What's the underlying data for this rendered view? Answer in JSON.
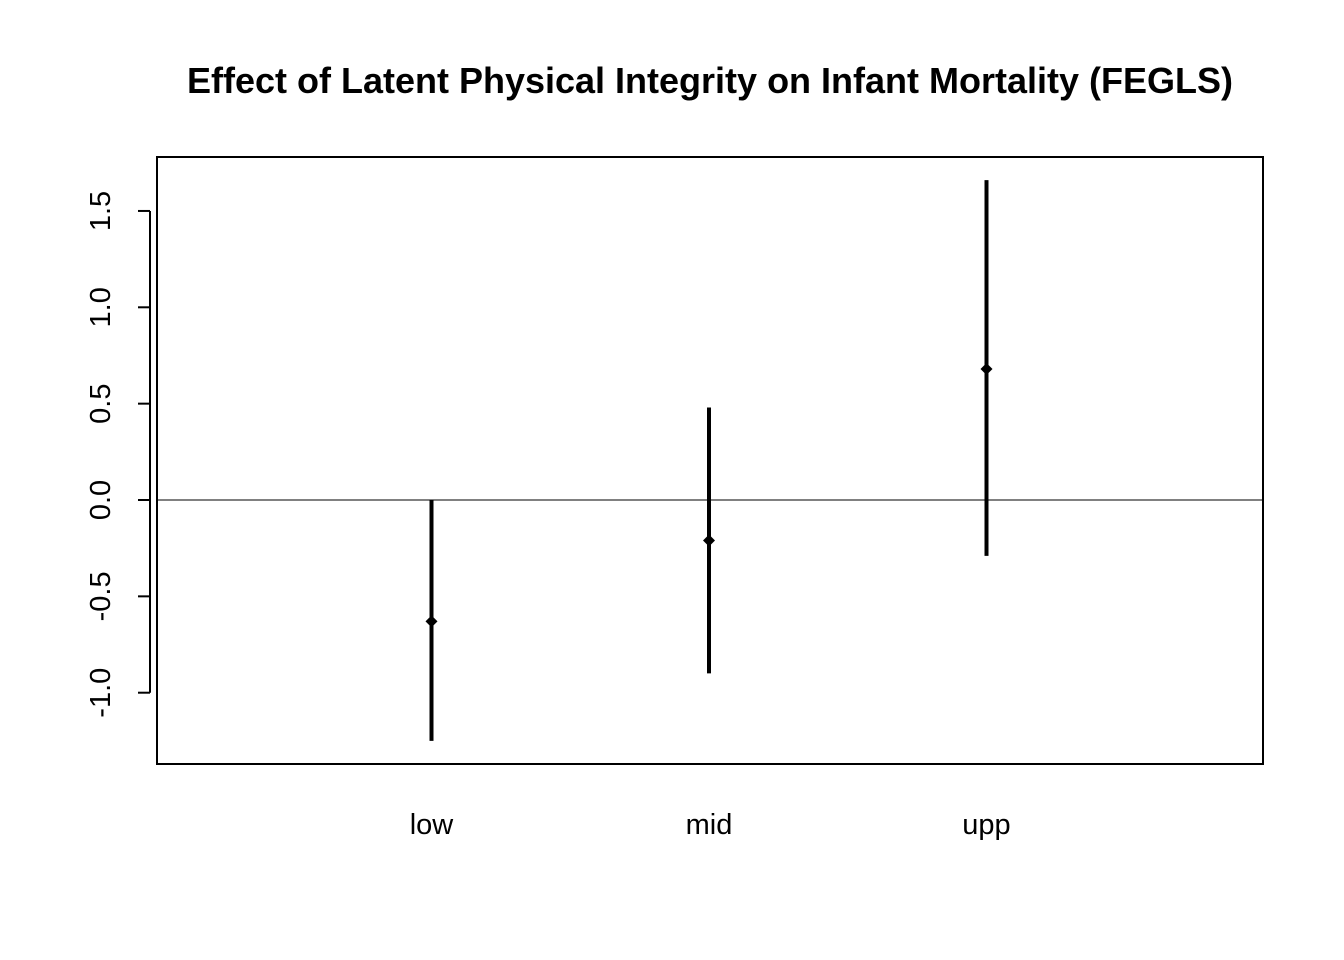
{
  "chart_data": {
    "type": "errorbar",
    "title": "Effect of Latent Physical Integrity on Infant Mortality (FEGLS)",
    "xlabel": "",
    "ylabel": "",
    "categories": [
      "low",
      "mid",
      "upp"
    ],
    "series": [
      {
        "estimate": [
          -0.63,
          -0.21,
          0.68
        ],
        "lower": [
          -1.25,
          -0.9,
          -0.29
        ],
        "upper": [
          0.0,
          0.48,
          1.66
        ]
      }
    ],
    "reference_line": 0.0,
    "ylim": [
      -1.37,
      1.78
    ],
    "yticks": [
      -1.0,
      -0.5,
      0.0,
      0.5,
      1.0,
      1.5
    ],
    "ytick_labels": [
      "-1.0",
      "-0.5",
      "0.0",
      "0.5",
      "1.0",
      "1.5"
    ],
    "grid": false,
    "legend": "none",
    "colors": {
      "marks": "#000000",
      "frame": "#000000",
      "background": "#ffffff"
    }
  }
}
